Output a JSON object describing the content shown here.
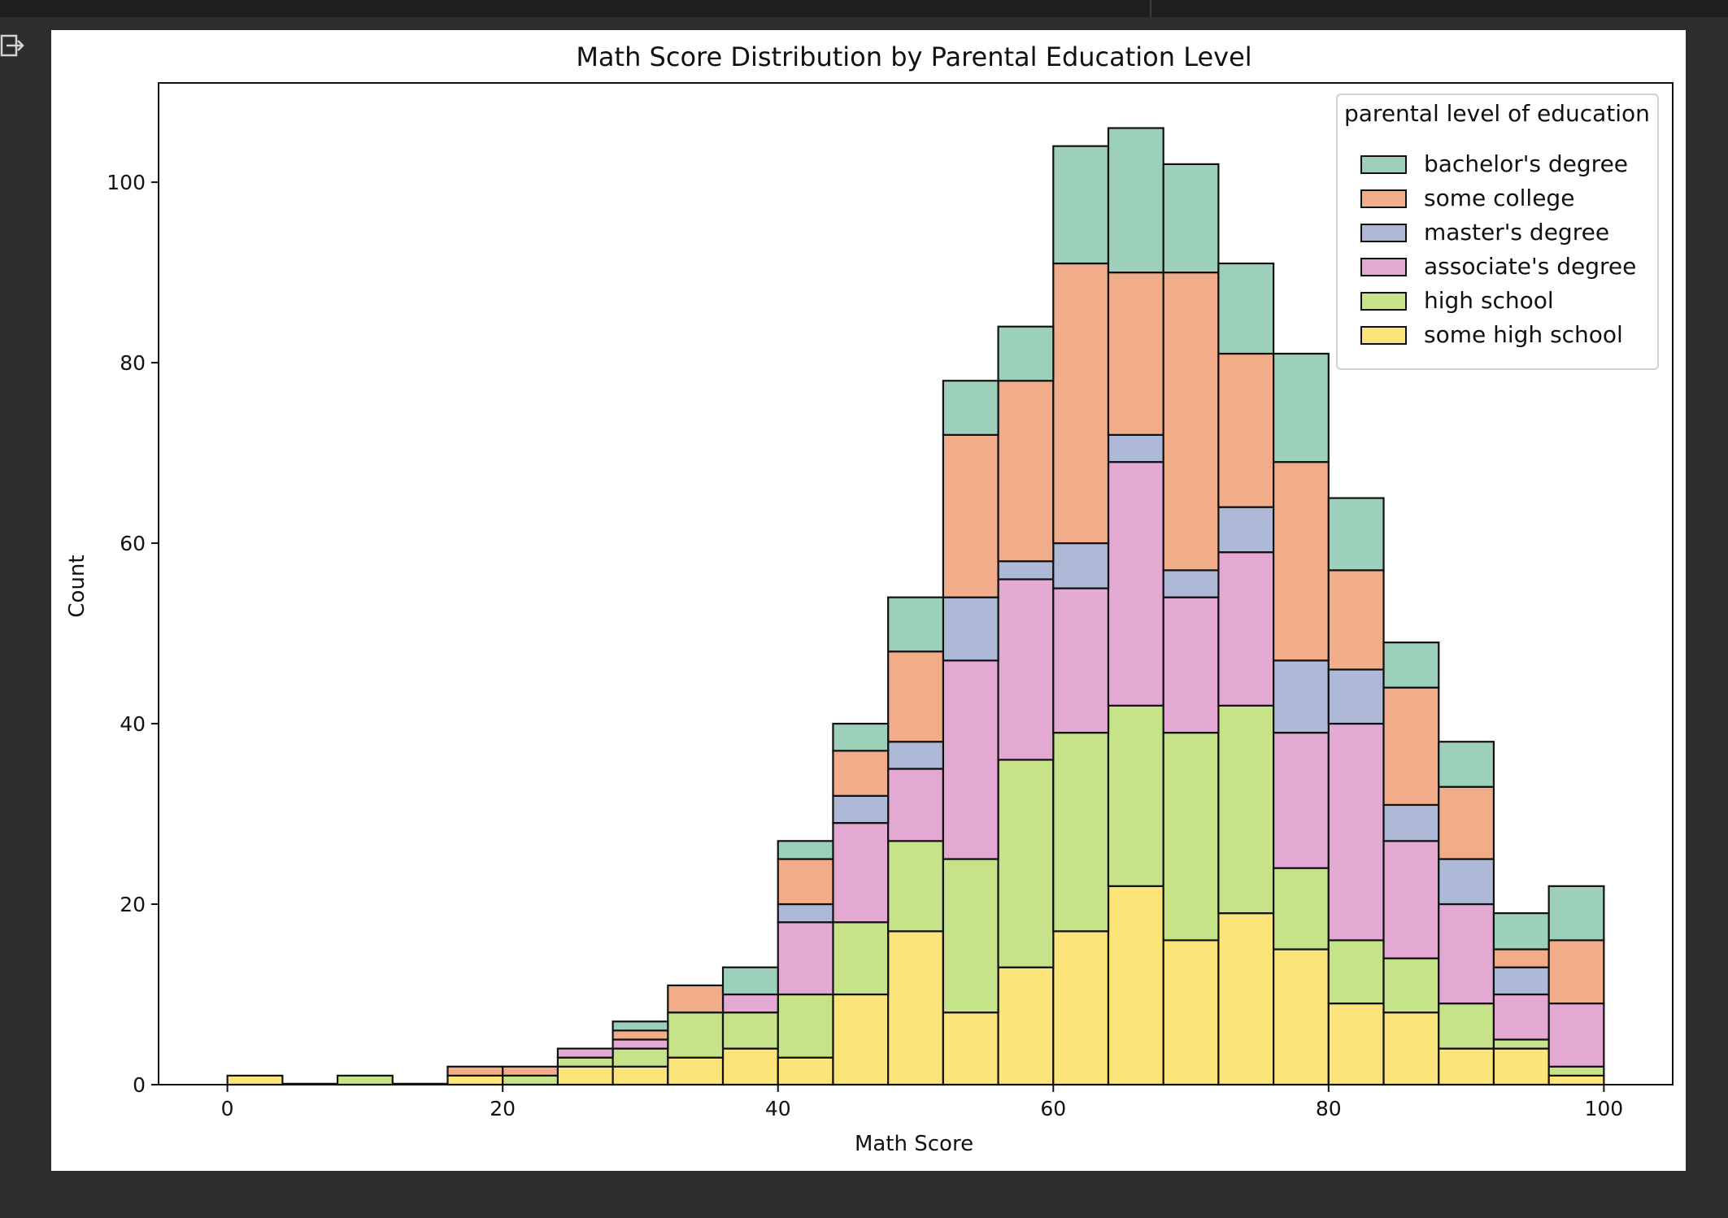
{
  "chart_data": {
    "type": "bar",
    "stacked": true,
    "title": "Math Score Distribution by Parental Education Level",
    "xlabel": "Math Score",
    "ylabel": "Count",
    "xlim": [
      -5,
      105
    ],
    "ylim": [
      0,
      111
    ],
    "xticks": [
      0,
      20,
      40,
      60,
      80,
      100
    ],
    "yticks": [
      0,
      20,
      40,
      60,
      80,
      100
    ],
    "bin_edges": [
      0,
      4,
      8,
      12,
      16,
      20,
      24,
      28,
      32,
      36,
      40,
      44,
      48,
      52,
      56,
      60,
      64,
      68,
      72,
      76,
      80,
      84,
      88,
      92,
      96,
      100
    ],
    "grid": false,
    "legend": {
      "title": "parental level of education",
      "placement": "top-right"
    },
    "series": [
      {
        "name": "some high school",
        "color": "#fbe57b",
        "values": [
          1,
          0,
          0,
          0,
          1,
          0,
          2,
          2,
          3,
          4,
          3,
          10,
          17,
          8,
          13,
          17,
          22,
          16,
          19,
          15,
          9,
          8,
          4,
          4,
          1
        ]
      },
      {
        "name": "high school",
        "color": "#c6e38a",
        "values": [
          0,
          0,
          1,
          0,
          0,
          1,
          1,
          2,
          5,
          4,
          7,
          8,
          10,
          17,
          23,
          22,
          20,
          23,
          23,
          9,
          7,
          6,
          5,
          1,
          1
        ]
      },
      {
        "name": "associate's degree",
        "color": "#e4a9d2",
        "values": [
          0,
          0,
          0,
          0,
          0,
          0,
          1,
          1,
          0,
          2,
          8,
          11,
          8,
          22,
          20,
          16,
          27,
          15,
          17,
          15,
          24,
          13,
          11,
          5,
          7
        ]
      },
      {
        "name": "master's degree",
        "color": "#aeb8d7",
        "values": [
          0,
          0,
          0,
          0,
          0,
          0,
          0,
          0,
          0,
          0,
          2,
          3,
          3,
          7,
          2,
          5,
          3,
          3,
          5,
          8,
          6,
          4,
          5,
          3,
          0
        ]
      },
      {
        "name": "some college",
        "color": "#f1ac8a",
        "values": [
          0,
          0,
          0,
          0,
          1,
          1,
          0,
          1,
          3,
          0,
          5,
          5,
          10,
          18,
          20,
          31,
          18,
          33,
          17,
          22,
          11,
          13,
          8,
          2,
          7
        ]
      },
      {
        "name": "bachelor's degree",
        "color": "#9dd0ba",
        "values": [
          0,
          0,
          0,
          0,
          0,
          0,
          0,
          1,
          0,
          3,
          2,
          3,
          6,
          6,
          6,
          13,
          16,
          12,
          10,
          12,
          8,
          5,
          5,
          4,
          6
        ]
      }
    ],
    "legend_order": [
      "bachelor's degree",
      "some college",
      "master's degree",
      "associate's degree",
      "high school",
      "some high school"
    ]
  }
}
